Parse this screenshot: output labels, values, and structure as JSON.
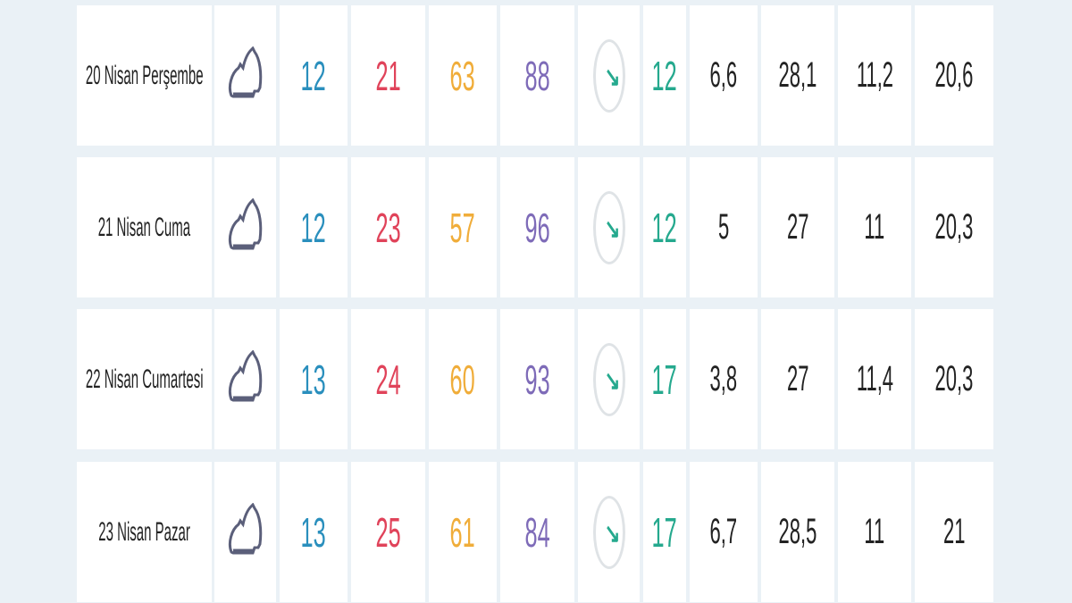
{
  "colors": {
    "min": "#2a8fbd",
    "max": "#e0435a",
    "c3": "#f0ad3a",
    "c4": "#7e6bb8",
    "wind": "#25a98e"
  },
  "icons": {
    "weather": "cloud-icon",
    "wind_direction": "arrow-down-right-icon"
  },
  "rows": [
    {
      "date": "20 Nisan Perşembe",
      "v1": "12",
      "v2": "21",
      "v3": "63",
      "v4": "88",
      "v5": "12",
      "v6": "6,6",
      "v7": "28,1",
      "v8": "11,2",
      "v9": "20,6"
    },
    {
      "date": "21 Nisan Cuma",
      "v1": "12",
      "v2": "23",
      "v3": "57",
      "v4": "96",
      "v5": "12",
      "v6": "5",
      "v7": "27",
      "v8": "11",
      "v9": "20,3"
    },
    {
      "date": "22 Nisan Cumartesi",
      "v1": "13",
      "v2": "24",
      "v3": "60",
      "v4": "93",
      "v5": "17",
      "v6": "3,8",
      "v7": "27",
      "v8": "11,4",
      "v9": "20,3"
    },
    {
      "date": "23 Nisan Pazar",
      "v1": "13",
      "v2": "25",
      "v3": "61",
      "v4": "84",
      "v5": "17",
      "v6": "6,7",
      "v7": "28,5",
      "v8": "11",
      "v9": "21"
    }
  ]
}
